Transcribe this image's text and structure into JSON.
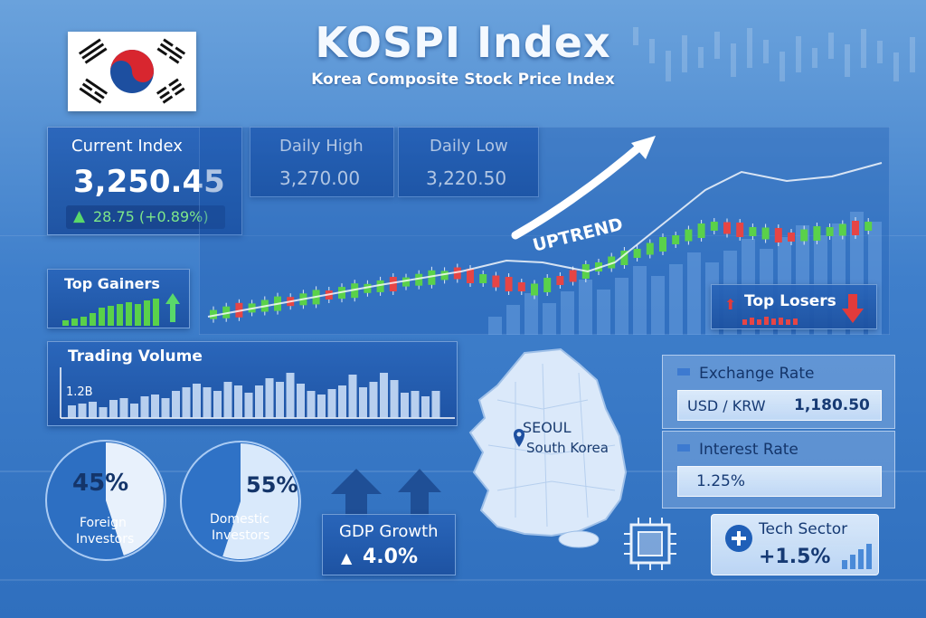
{
  "header": {
    "title": "KOSPI Index",
    "subtitle": "Korea Composite Stock Price Index"
  },
  "current_index": {
    "label": "Current Index",
    "value": "3,250.45",
    "change": "28.75 (+0.89%)"
  },
  "daily_high": {
    "label": "Daily High",
    "value": "3,270.00"
  },
  "daily_low": {
    "label": "Daily Low",
    "value": "3,220.50"
  },
  "chart": {
    "trend_label": "UPTREND"
  },
  "top_gainers": {
    "label": "Top Gainers"
  },
  "top_losers": {
    "label": "Top Losers"
  },
  "trading_volume": {
    "label": "Trading Volume",
    "axis_label": "1.2B"
  },
  "map": {
    "city": "SEOUL",
    "country": "South Korea"
  },
  "exchange_rate": {
    "label": "Exchange Rate",
    "pair": "USD / KRW",
    "value": "1,180.50"
  },
  "interest_rate": {
    "label": "Interest Rate",
    "value": "1.25%"
  },
  "foreign_investors": {
    "percent_value": 45,
    "percent": "45%",
    "label": "Foreign\nInvestors"
  },
  "domestic_investors": {
    "percent_value": 55,
    "percent": "55%",
    "label": "Domestic\nInvestors"
  },
  "gdp": {
    "label": "GDP Growth",
    "value": "4.0%"
  },
  "tech_sector": {
    "label": "Tech Sector",
    "value": "+1.5%"
  },
  "colors": {
    "up": "#5ad14a",
    "down": "#e64545",
    "accent_green": "#59d86a",
    "accent_red": "#e23b3b"
  }
}
